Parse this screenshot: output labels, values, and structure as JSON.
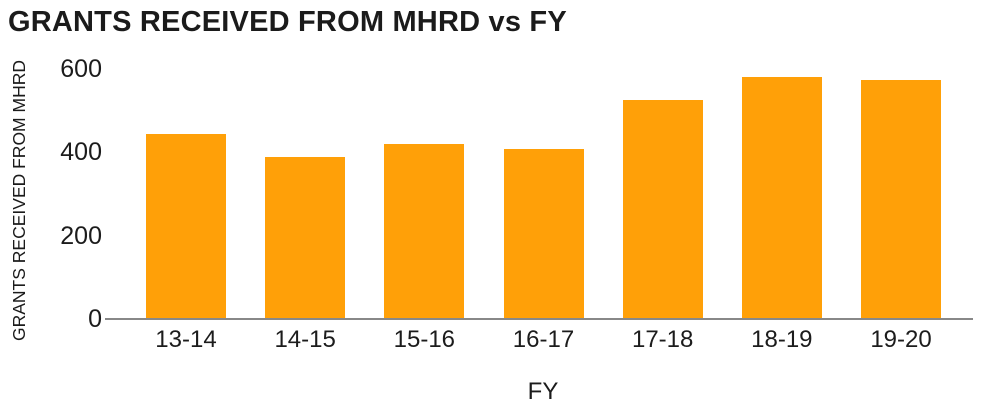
{
  "chart_data": {
    "type": "bar",
    "title": "GRANTS RECEIVED FROM MHRD vs FY",
    "xlabel": "FY",
    "ylabel": "GRANTS RECEIVED FROM MHRD",
    "categories": [
      "13-14",
      "14-15",
      "15-16",
      "16-17",
      "17-18",
      "18-19",
      "19-20"
    ],
    "values": [
      445,
      390,
      420,
      408,
      526,
      581,
      574
    ],
    "ylim": [
      0,
      600
    ],
    "yticks": [
      0,
      200,
      400,
      600
    ],
    "grid": false,
    "legend": "none",
    "bar_color": "#FFA008",
    "axis_line_color": "#888888",
    "text_color": "#1b1b1b",
    "background_color": "#FFFFFF"
  }
}
